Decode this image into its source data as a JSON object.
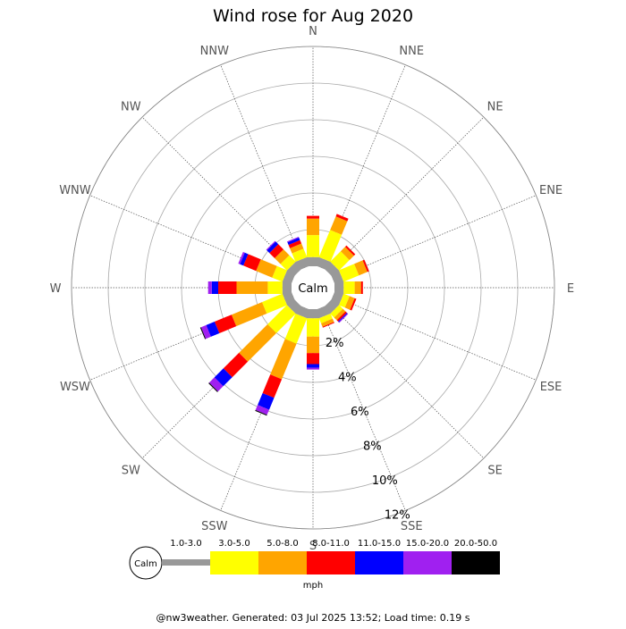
{
  "title": "Wind rose for Aug 2020",
  "calm_label": "Calm",
  "units_label": "mph",
  "footer": "@nw3weather. Generated: 03 Jul 2025 13:52; Load time: 0.19 s",
  "chart_data": {
    "type": "wind-rose",
    "title": "Wind rose for Aug 2020",
    "directions": [
      "N",
      "NNE",
      "NE",
      "ENE",
      "E",
      "ESE",
      "SE",
      "SSE",
      "S",
      "SSW",
      "SW",
      "WSW",
      "W",
      "WNW",
      "NW",
      "NNW"
    ],
    "ring_labels": [
      "2%",
      "4%",
      "6%",
      "8%",
      "10%",
      "12%"
    ],
    "r_ticks": [
      2,
      4,
      6,
      8,
      10,
      12
    ],
    "r_max_percent": 12,
    "speed_bins": [
      "1.0-3.0",
      "3.0-5.0",
      "5.0-8.0",
      "8.0-11.0",
      "11.0-15.0",
      "15.0-20.0",
      "20.0-50.0"
    ],
    "speed_colors": [
      "#999999",
      "#ffff00",
      "#ffa500",
      "#ff0000",
      "#0000ff",
      "#a020f0",
      "#000000"
    ],
    "units": "mph",
    "calm": "Calm",
    "segments_percent": [
      [
        0.5,
        1.2,
        0.9,
        0.15,
        0,
        0,
        0
      ],
      [
        0.5,
        1.6,
        0.8,
        0.15,
        0,
        0,
        0
      ],
      [
        0.5,
        0.8,
        0.35,
        0.1,
        0,
        0,
        0
      ],
      [
        0.5,
        0.9,
        0.5,
        0.1,
        0,
        0,
        0
      ],
      [
        0.5,
        0.6,
        0.35,
        0.1,
        0,
        0,
        0
      ],
      [
        0.5,
        0.35,
        0.3,
        0.1,
        0,
        0,
        0
      ],
      [
        0.5,
        0.3,
        0.2,
        0.1,
        0.05,
        0.05,
        0
      ],
      [
        0.5,
        0.3,
        0.2,
        0.05,
        0,
        0,
        0
      ],
      [
        0.5,
        1.0,
        0.9,
        0.6,
        0.2,
        0.1,
        0
      ],
      [
        0.5,
        1.5,
        2.1,
        1.1,
        0.7,
        0.3,
        0.05
      ],
      [
        0.5,
        1.5,
        2.2,
        1.2,
        0.7,
        0.4,
        0.05
      ],
      [
        0.5,
        1.2,
        1.8,
        1.0,
        0.5,
        0.3,
        0.05
      ],
      [
        0.5,
        0.8,
        1.7,
        1.0,
        0.35,
        0.2,
        0
      ],
      [
        0.5,
        0.6,
        0.95,
        0.75,
        0.2,
        0.1,
        0
      ],
      [
        0.5,
        0.5,
        0.45,
        0.4,
        0.2,
        0.05,
        0
      ],
      [
        0.5,
        0.5,
        0.3,
        0.2,
        0.15,
        0.05,
        0
      ]
    ]
  }
}
